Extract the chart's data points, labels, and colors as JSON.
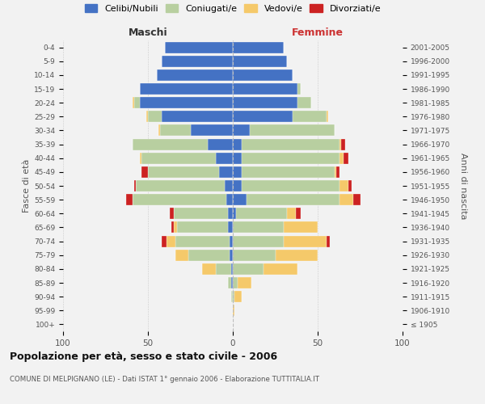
{
  "age_groups": [
    "100+",
    "95-99",
    "90-94",
    "85-89",
    "80-84",
    "75-79",
    "70-74",
    "65-69",
    "60-64",
    "55-59",
    "50-54",
    "45-49",
    "40-44",
    "35-39",
    "30-34",
    "25-29",
    "20-24",
    "15-19",
    "10-14",
    "5-9",
    "0-4"
  ],
  "birth_years": [
    "≤ 1905",
    "1906-1910",
    "1911-1915",
    "1916-1920",
    "1921-1925",
    "1926-1930",
    "1931-1935",
    "1936-1940",
    "1941-1945",
    "1946-1950",
    "1951-1955",
    "1956-1960",
    "1961-1965",
    "1966-1970",
    "1971-1975",
    "1976-1980",
    "1981-1985",
    "1986-1990",
    "1991-1995",
    "1996-2000",
    "2001-2005"
  ],
  "colors": {
    "celibi": "#4472c4",
    "coniugati": "#b8cfa0",
    "vedovi": "#f5c96a",
    "divorziati": "#cc2222"
  },
  "males": {
    "celibi": [
      0,
      0,
      0,
      1,
      1,
      2,
      2,
      3,
      3,
      4,
      5,
      8,
      10,
      15,
      25,
      42,
      55,
      55,
      45,
      42,
      40
    ],
    "coniugati": [
      0,
      0,
      1,
      2,
      9,
      24,
      32,
      30,
      32,
      55,
      52,
      42,
      44,
      44,
      18,
      8,
      3,
      0,
      0,
      0,
      0
    ],
    "vedovi": [
      0,
      0,
      0,
      0,
      8,
      8,
      5,
      2,
      0,
      0,
      0,
      0,
      1,
      0,
      1,
      1,
      1,
      0,
      0,
      0,
      0
    ],
    "divorziati": [
      0,
      0,
      0,
      0,
      0,
      0,
      3,
      1,
      2,
      4,
      1,
      4,
      0,
      0,
      0,
      0,
      0,
      0,
      0,
      0,
      0
    ]
  },
  "females": {
    "celibi": [
      0,
      0,
      0,
      0,
      0,
      0,
      0,
      0,
      2,
      8,
      5,
      5,
      5,
      5,
      10,
      35,
      38,
      38,
      35,
      32,
      30
    ],
    "coniugati": [
      0,
      0,
      1,
      3,
      18,
      25,
      30,
      30,
      30,
      55,
      58,
      55,
      58,
      58,
      50,
      20,
      8,
      2,
      0,
      0,
      0
    ],
    "vedovi": [
      0,
      1,
      4,
      8,
      20,
      25,
      25,
      20,
      5,
      8,
      5,
      1,
      2,
      1,
      0,
      1,
      0,
      0,
      0,
      0,
      0
    ],
    "divorziati": [
      0,
      0,
      0,
      0,
      0,
      0,
      2,
      0,
      3,
      4,
      2,
      2,
      3,
      2,
      0,
      0,
      0,
      0,
      0,
      0,
      0
    ]
  },
  "title_main": "Popolazione per età, sesso e stato civile - 2006",
  "title_sub": "COMUNE DI MELPIGNANO (LE) - Dati ISTAT 1° gennaio 2006 - Elaborazione TUTTITALIA.IT",
  "label_maschi": "Maschi",
  "label_femmine": "Femmine",
  "ylabel_left": "Fasce di età",
  "ylabel_right": "Anni di nascita",
  "xlim": 100,
  "legend_labels": [
    "Celibi/Nubili",
    "Coniugati/e",
    "Vedovi/e",
    "Divorziati/e"
  ],
  "bg_color": "#f2f2f2"
}
